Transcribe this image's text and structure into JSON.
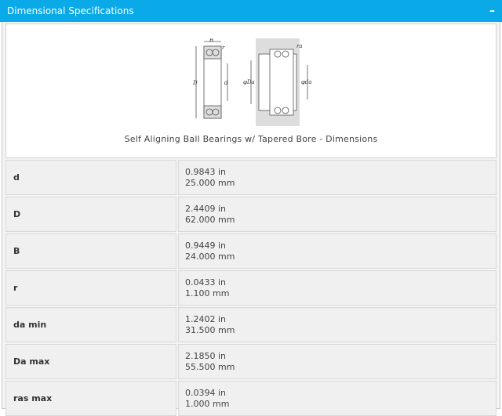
{
  "header": {
    "title": "Dimensional Specifications",
    "collapse_icon": "minus-icon",
    "color": "#0aa9e8"
  },
  "figure": {
    "caption": "Self Aligning Ball Bearings w/ Tapered Bore - Dimensions",
    "labels": {
      "B": "B",
      "D": "D",
      "d": "d",
      "r": "r",
      "Da": "φDa",
      "da": "φda",
      "ra": "ra"
    }
  },
  "rows": [
    {
      "label": "d",
      "in": "0.9843 in",
      "mm": "25.000 mm"
    },
    {
      "label": "D",
      "in": "2.4409 in",
      "mm": "62.000 mm"
    },
    {
      "label": "B",
      "in": "0.9449 in",
      "mm": "24.000 mm"
    },
    {
      "label": "r",
      "in": "0.0433 in",
      "mm": "1.100 mm"
    },
    {
      "label": "da min",
      "in": "1.2402 in",
      "mm": "31.500 mm"
    },
    {
      "label": "Da max",
      "in": "2.1850 in",
      "mm": "55.500 mm"
    },
    {
      "label": "ras max",
      "in": "0.0394 in",
      "mm": "1.000 mm"
    }
  ]
}
